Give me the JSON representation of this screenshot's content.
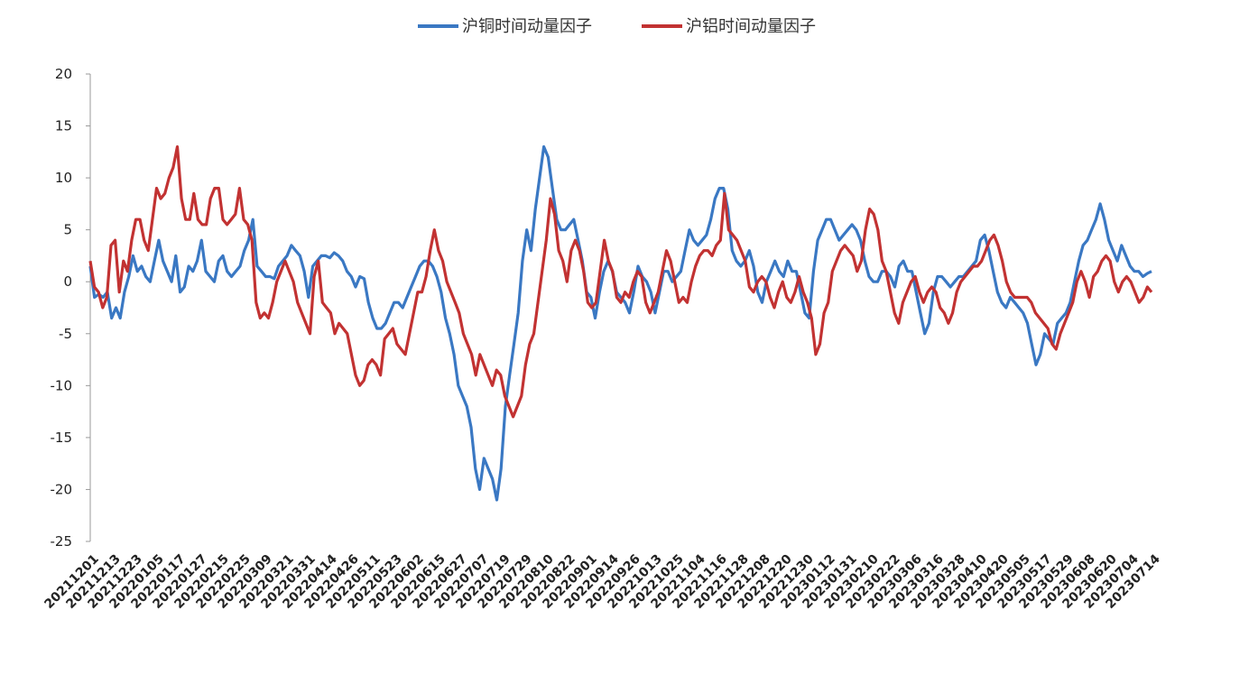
{
  "chart_data": {
    "type": "line",
    "title": "",
    "xlabel": "",
    "ylabel": "",
    "ylim": [
      -25,
      20
    ],
    "yticks": [
      20,
      15,
      10,
      5,
      0,
      -5,
      -10,
      -15,
      -20,
      -25
    ],
    "grid": false,
    "legend_position": "top-center",
    "x_tick_labels": [
      "20211201",
      "20211213",
      "20211223",
      "20220105",
      "20220117",
      "20220127",
      "20220215",
      "20220225",
      "20220309",
      "20220321",
      "20220331",
      "20220414",
      "20220426",
      "20220511",
      "20220523",
      "20220602",
      "20220615",
      "20220627",
      "20220707",
      "20220719",
      "20220729",
      "20220810",
      "20220822",
      "20220901",
      "20220914",
      "20220926",
      "20221013",
      "20221025",
      "20221104",
      "20221116",
      "20221128",
      "20221208",
      "20221220",
      "20221230",
      "20230112",
      "20230131",
      "20230210",
      "20230222",
      "20230306",
      "20230316",
      "20230328",
      "20230410",
      "20230420",
      "20230505",
      "20230517",
      "20230529",
      "20230608",
      "20230620",
      "20230704",
      "20230714"
    ],
    "series": [
      {
        "name": "沪铜时间动量因子",
        "color": "#3a78c3",
        "values": [
          1.5,
          -1.5,
          -1.2,
          -1.5,
          -1,
          -3.5,
          -2.5,
          -3.5,
          -1,
          0.5,
          2.5,
          1,
          1.5,
          0.5,
          0,
          2,
          4,
          2,
          1,
          0,
          2.5,
          -1,
          -0.5,
          1.5,
          1,
          2,
          4,
          1,
          0.5,
          0,
          2,
          2.5,
          1,
          0.5,
          1,
          1.5,
          3,
          4,
          6,
          1.5,
          1,
          0.5,
          0.5,
          0.3,
          1.5,
          2,
          2.5,
          3.5,
          3,
          2.5,
          1,
          -1.5,
          1.5,
          2,
          2.5,
          2.5,
          2.3,
          2.8,
          2.5,
          2,
          1,
          0.5,
          -0.5,
          0.5,
          0.3,
          -2,
          -3.5,
          -4.5,
          -4.5,
          -4,
          -3,
          -2,
          -2,
          -2.5,
          -1.5,
          -0.5,
          0.5,
          1.5,
          2,
          2,
          1.5,
          0.5,
          -1,
          -3.5,
          -5,
          -7,
          -10,
          -11,
          -12,
          -14,
          -18,
          -20,
          -17,
          -18,
          -19,
          -21,
          -18,
          -12,
          -9,
          -6,
          -3,
          2,
          5,
          3,
          7,
          10,
          13,
          12,
          9,
          6,
          5,
          5,
          5.5,
          6,
          4,
          2,
          -1,
          -1.5,
          -3.5,
          -1,
          1,
          2,
          1,
          -1,
          -1.5,
          -2,
          -3,
          -1,
          1.5,
          0.5,
          0,
          -1,
          -3,
          -1,
          1,
          1,
          0,
          0.5,
          1,
          3,
          5,
          4,
          3.5,
          4,
          4.5,
          6,
          8,
          9,
          9,
          7,
          3,
          2,
          1.5,
          2,
          3,
          1.5,
          -1,
          -2,
          0,
          1,
          2,
          1,
          0.5,
          2,
          1,
          1,
          -1,
          -3,
          -3.5,
          1,
          4,
          5,
          6,
          6,
          5,
          4,
          4.5,
          5,
          5.5,
          5,
          4,
          2,
          0.5,
          0,
          0,
          1,
          1,
          0.5,
          -0.5,
          1.5,
          2,
          1,
          1,
          -1,
          -3,
          -5,
          -4,
          -1,
          0.5,
          0.5,
          0,
          -0.5,
          0,
          0.5,
          0.5,
          1,
          1.5,
          2,
          4,
          4.5,
          3,
          1,
          -1,
          -2,
          -2.5,
          -1.5,
          -2,
          -2.5,
          -3,
          -4,
          -6,
          -8,
          -7,
          -5,
          -5.5,
          -6,
          -4,
          -3.5,
          -3,
          -2,
          0,
          2,
          3.5,
          4,
          5,
          6,
          7.5,
          6,
          4,
          3,
          2,
          3.5,
          2.5,
          1.5,
          1,
          1,
          0.5,
          0.8,
          1
        ]
      },
      {
        "name": "沪铝时间动量因子",
        "color": "#c23232",
        "values": [
          2,
          -0.5,
          -1,
          -2.5,
          -1.5,
          3.5,
          4,
          -1,
          2,
          1,
          4,
          6,
          6,
          4,
          3,
          6,
          9,
          8,
          8.5,
          10,
          11,
          13,
          8,
          6,
          6,
          8.5,
          6,
          5.5,
          5.5,
          8,
          9,
          9,
          6,
          5.5,
          6,
          6.5,
          9,
          6,
          5.5,
          4,
          -2,
          -3.5,
          -3,
          -3.5,
          -2,
          0,
          1,
          2,
          1,
          0,
          -2,
          -3,
          -4,
          -5,
          0.5,
          2,
          -2,
          -2.5,
          -3,
          -5,
          -4,
          -4.5,
          -5,
          -7,
          -9,
          -10,
          -9.5,
          -8,
          -7.5,
          -8,
          -9,
          -5.5,
          -5,
          -4.5,
          -6,
          -6.5,
          -7,
          -5,
          -3,
          -1,
          -1,
          0.5,
          3,
          5,
          3,
          2,
          0,
          -1,
          -2,
          -3,
          -5,
          -6,
          -7,
          -9,
          -7,
          -8,
          -9,
          -10,
          -8.5,
          -9,
          -11,
          -12,
          -13,
          -12,
          -11,
          -8,
          -6,
          -5,
          -2,
          1,
          4,
          8,
          6.5,
          3,
          2,
          0,
          3,
          4,
          3,
          1,
          -2,
          -2.5,
          -2,
          1,
          4,
          2,
          1,
          -1.5,
          -2,
          -1,
          -1.5,
          0,
          1,
          0.5,
          -2,
          -3,
          -2,
          -1,
          1,
          3,
          2,
          0,
          -2,
          -1.5,
          -2,
          0,
          1.5,
          2.5,
          3,
          3,
          2.5,
          3.5,
          4,
          8.5,
          5,
          4.5,
          4,
          3,
          2,
          -0.5,
          -1,
          0,
          0.5,
          0,
          -1.5,
          -2.5,
          -1,
          0,
          -1.5,
          -2,
          -1,
          0.5,
          -1,
          -2,
          -3.5,
          -7,
          -6,
          -3,
          -2,
          1,
          2,
          3,
          3.5,
          3,
          2.5,
          1,
          2,
          5,
          7,
          6.5,
          5,
          2,
          1,
          -1,
          -3,
          -4,
          -2,
          -1,
          0,
          0.5,
          -1,
          -2,
          -1,
          -0.5,
          -1,
          -2.5,
          -3,
          -4,
          -3,
          -1,
          0,
          0.5,
          1,
          1.5,
          1.5,
          2,
          3,
          4,
          4.5,
          3.5,
          2,
          0,
          -1,
          -1.5,
          -1.5,
          -1.5,
          -1.5,
          -2,
          -3,
          -3.5,
          -4,
          -4.5,
          -6,
          -6.5,
          -5,
          -4,
          -3,
          -2,
          0,
          1,
          0,
          -1.5,
          0.5,
          1,
          2,
          2.5,
          2,
          0,
          -1,
          0,
          0.5,
          0,
          -1,
          -2,
          -1.5,
          -0.5,
          -1
        ]
      }
    ]
  }
}
